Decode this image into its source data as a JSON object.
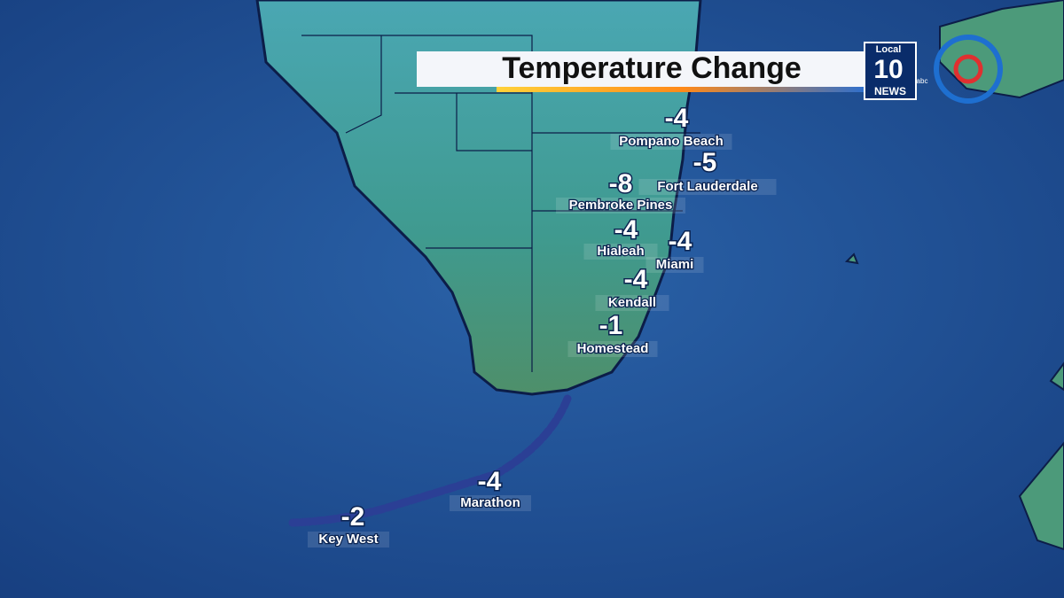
{
  "header": {
    "title": "Temperature Change",
    "logo": {
      "top": "Local",
      "number": "10",
      "bottom": "NEWS",
      "network": "abc"
    }
  },
  "cities": [
    {
      "name": "Pompano Beach",
      "value": -4
    },
    {
      "name": "Fort Lauderdale",
      "value": -5
    },
    {
      "name": "Pembroke Pines",
      "value": -8
    },
    {
      "name": "Hialeah",
      "value": -4
    },
    {
      "name": "Miami",
      "value": -4
    },
    {
      "name": "Kendall",
      "value": -4
    },
    {
      "name": "Homestead",
      "value": -1
    },
    {
      "name": "Marathon",
      "value": -4
    },
    {
      "name": "Key West",
      "value": -2
    }
  ]
}
